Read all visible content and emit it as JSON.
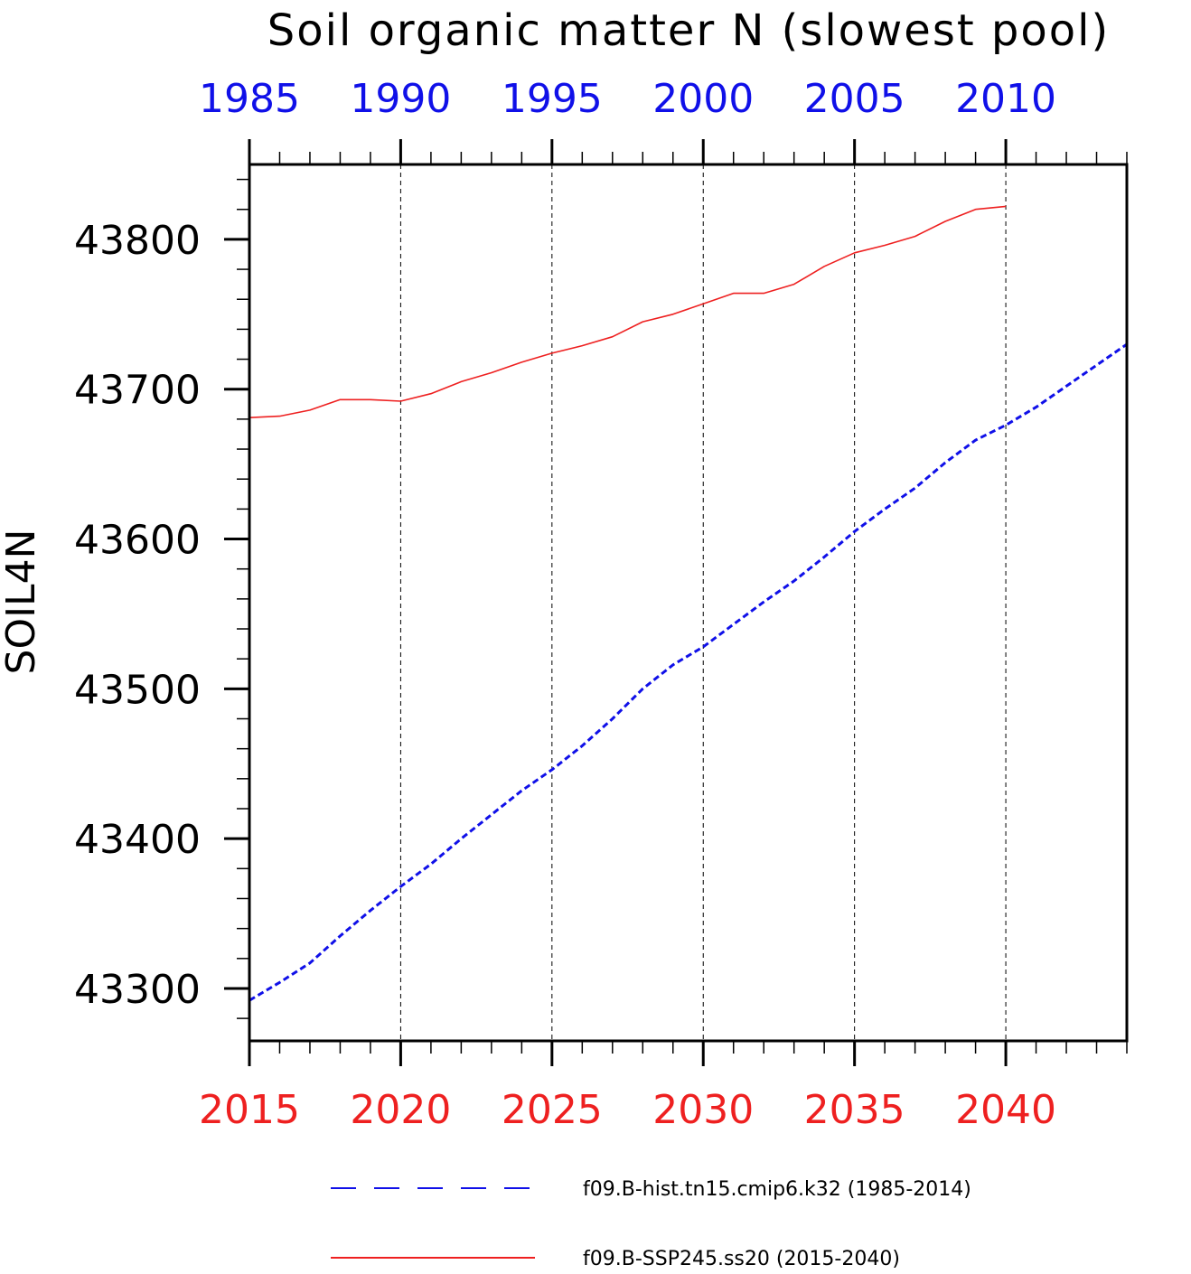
{
  "chart_data": {
    "type": "line",
    "title": "Soil organic matter N (slowest pool)",
    "ylabel": "SOIL4N",
    "xlabel": "",
    "ylim": [
      43265,
      43850
    ],
    "bottom_axis": {
      "range": [
        2015,
        2044
      ],
      "tick_labels": [
        "2015",
        "2020",
        "2025",
        "2030",
        "2035",
        "2040"
      ],
      "tick_values": [
        2015,
        2020,
        2025,
        2030,
        2035,
        2040
      ],
      "color": "#ee2020"
    },
    "top_axis": {
      "tick_labels": [
        "1985",
        "1990",
        "1995",
        "2000",
        "2005",
        "2010"
      ],
      "color": "#1010e8"
    },
    "y_ticks": [
      "43300",
      "43400",
      "43500",
      "43600",
      "43700",
      "43800"
    ],
    "y_tick_values": [
      43300,
      43400,
      43500,
      43600,
      43700,
      43800
    ],
    "grid": "vertical-dashed",
    "series": [
      {
        "name": "f09.B-hist.tn15.cmip6.k32 (1985-2014)",
        "color": "#1010e8",
        "style": "dashed",
        "x": [
          2015,
          2016,
          2017,
          2018,
          2019,
          2020,
          2021,
          2022,
          2023,
          2024,
          2025,
          2026,
          2027,
          2028,
          2029,
          2030,
          2031,
          2032,
          2033,
          2034,
          2035,
          2036,
          2037,
          2038,
          2039,
          2040,
          2041,
          2042,
          2043,
          2044
        ],
        "y": [
          43292,
          43304,
          43317,
          43335,
          43352,
          43368,
          43383,
          43400,
          43416,
          43432,
          43446,
          43462,
          43480,
          43500,
          43516,
          43528,
          43543,
          43558,
          43572,
          43588,
          43605,
          43620,
          43634,
          43651,
          43666,
          43676,
          43688,
          43702,
          43716,
          43730
        ]
      },
      {
        "name": "f09.B-SSP245.ss20 (2015-2040)",
        "color": "#ee2020",
        "style": "solid",
        "x": [
          2015,
          2016,
          2017,
          2018,
          2019,
          2020,
          2021,
          2022,
          2023,
          2024,
          2025,
          2026,
          2027,
          2028,
          2029,
          2030,
          2031,
          2032,
          2033,
          2034,
          2035,
          2036,
          2037,
          2038,
          2039,
          2040
        ],
        "y": [
          43681,
          43682,
          43686,
          43693,
          43693,
          43692,
          43697,
          43705,
          43711,
          43718,
          43724,
          43729,
          43735,
          43745,
          43750,
          43757,
          43764,
          43764,
          43770,
          43782,
          43791,
          43796,
          43802,
          43812,
          43820,
          43822
        ]
      }
    ],
    "legend_position": "bottom"
  }
}
